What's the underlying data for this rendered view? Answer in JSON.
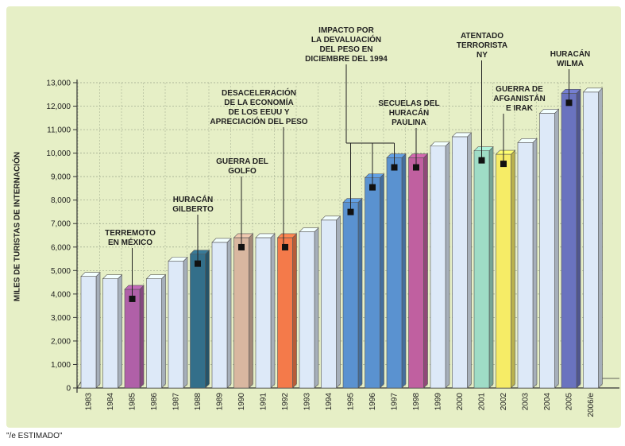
{
  "chart_data": {
    "type": "bar",
    "title": "",
    "xlabel": "",
    "ylabel": "MILES DE TURISTAS DE INTERNACIÓN",
    "ylim": [
      0,
      13000
    ],
    "y_ticks": [
      "0",
      "1,000",
      "2,000",
      "3,000",
      "4,000",
      "5,000",
      "6,000",
      "7,000",
      "8,000",
      "9,000",
      "10,000",
      "11,000",
      "12,000",
      "13,000"
    ],
    "grid": true,
    "categories": [
      "1983",
      "1984",
      "1985",
      "1986",
      "1987",
      "1988",
      "1989",
      "1990",
      "1991",
      "1992",
      "1993",
      "1994",
      "1995",
      "1996",
      "1997",
      "1998",
      "1999",
      "2000",
      "2001",
      "2002",
      "2003",
      "2004",
      "2005",
      "2006/e"
    ],
    "values": [
      4750,
      4650,
      4200,
      4650,
      5400,
      5700,
      6200,
      6400,
      6400,
      6400,
      6650,
      7150,
      7900,
      8950,
      9800,
      9800,
      10300,
      10700,
      10100,
      9950,
      10450,
      11700,
      12550,
      12600
    ],
    "bar_colors": [
      "#dde9f8",
      "#dde9f8",
      "#b060a8",
      "#dde9f8",
      "#dde9f8",
      "#336f8a",
      "#dde9f8",
      "#d9b7a0",
      "#dde9f8",
      "#f47a4a",
      "#dde9f8",
      "#dde9f8",
      "#5a92d0",
      "#5a92d0",
      "#5a92d0",
      "#c060a0",
      "#dde9f8",
      "#dde9f8",
      "#9fdcc6",
      "#f6ec66",
      "#dde9f8",
      "#dde9f8",
      "#6a73bf",
      "#dde9f8"
    ],
    "annotations": [
      {
        "text": [
          "TERREMOTO",
          "EN MÉXICO"
        ],
        "category": "1985"
      },
      {
        "text": [
          "HURACÁN",
          "GILBERTO"
        ],
        "category": "1988"
      },
      {
        "text": [
          "GUERRA DEL",
          "GOLFO"
        ],
        "category": "1990"
      },
      {
        "text": [
          "DESACELERACIÓN",
          "DE LA ECONOMÍA",
          "DE LOS EEUU Y",
          "APRECIACIÓN DEL PESO"
        ],
        "category": "1992"
      },
      {
        "text": [
          "IMPACTO POR",
          "LA DEVALUACIÓN",
          "DEL PESO EN",
          "DICIEMBRE DEL 1994"
        ],
        "category": "1995"
      },
      {
        "text": [
          "SECUELAS DEL",
          "HURACÁN",
          "PAULINA"
        ],
        "category": "1998"
      },
      {
        "text": [
          "ATENTADO",
          "TERRORISTA",
          "NY"
        ],
        "category": "2001"
      },
      {
        "text": [
          "GUERRA DE",
          "AFGANISTÁN",
          "E IRAK"
        ],
        "category": "2002"
      },
      {
        "text": [
          "HURACÁN",
          "WILMA"
        ],
        "category": "2005"
      }
    ]
  },
  "footnote": "\"/e ESTIMADO\""
}
